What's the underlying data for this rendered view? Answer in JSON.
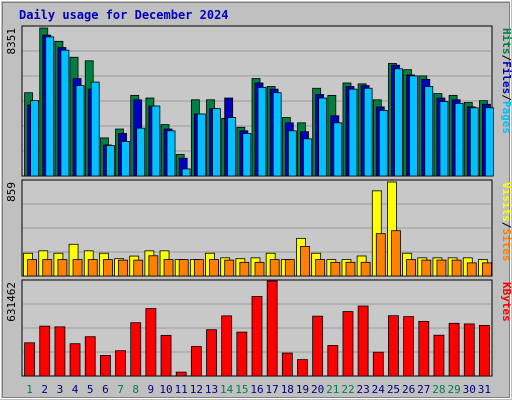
{
  "title": "Daily usage for December 2024",
  "colors": {
    "background": "#c0c0c0",
    "plot_background": "#c8c8c8",
    "gridline": "#9a9a9a",
    "title": "#0000c0",
    "hits": "#008040",
    "files": "#0000c0",
    "pages": "#00c0ff",
    "visits": "#ffff00",
    "sites": "#ff8000",
    "kbytes": "#ff0000",
    "weekend_label": "#00804a",
    "weekday_label": "#000080"
  },
  "chart_data": [
    {
      "type": "bar",
      "name": "hits-files-pages",
      "ymax_label": "8351",
      "legend": [
        {
          "name": "Pages",
          "color_key": "pages"
        },
        {
          "name": "/",
          "color_key": "separator"
        },
        {
          "name": "Files",
          "color_key": "files"
        },
        {
          "name": "/",
          "color_key": "separator"
        },
        {
          "name": "Hits",
          "color_key": "hits"
        }
      ],
      "ylim": [
        0,
        8351
      ],
      "categories": [
        "1",
        "2",
        "3",
        "4",
        "5",
        "6",
        "7",
        "8",
        "9",
        "10",
        "11",
        "12",
        "13",
        "14",
        "15",
        "16",
        "17",
        "18",
        "19",
        "20",
        "21",
        "22",
        "23",
        "24",
        "25",
        "26",
        "27",
        "28",
        "29",
        "30",
        "31"
      ],
      "series": [
        {
          "name": "Hits",
          "values": [
            4700,
            8350,
            7600,
            6700,
            6500,
            2150,
            2650,
            4550,
            4400,
            2900,
            1220,
            4300,
            4300,
            3250,
            2750,
            5500,
            5050,
            3300,
            3000,
            4950,
            4550,
            5250,
            5200,
            4300,
            6350,
            6000,
            5650,
            4650,
            4550,
            4150,
            4250
          ]
        },
        {
          "name": "Files",
          "values": [
            4000,
            7950,
            7250,
            5500,
            4900,
            1750,
            2400,
            4300,
            3950,
            2650,
            1000,
            3500,
            3800,
            4400,
            2550,
            5250,
            4900,
            3000,
            2500,
            4600,
            3400,
            5050,
            5100,
            3900,
            6250,
            5700,
            5450,
            4400,
            4300,
            3900,
            4050
          ]
        },
        {
          "name": "Pages",
          "values": [
            4250,
            7850,
            7100,
            5100,
            5300,
            1720,
            1950,
            2700,
            3950,
            2550,
            400,
            3500,
            3800,
            3300,
            2400,
            5000,
            4700,
            2550,
            2100,
            4400,
            3000,
            4900,
            4950,
            3700,
            6050,
            5650,
            5050,
            4200,
            4100,
            3850,
            3850
          ]
        }
      ]
    },
    {
      "type": "bar",
      "name": "visits-sites",
      "ymax_label": "859",
      "legend": [
        {
          "name": "Sites",
          "color_key": "sites"
        },
        {
          "name": "/",
          "color_key": "separator"
        },
        {
          "name": "Visits",
          "color_key": "visits"
        }
      ],
      "ylim": [
        0,
        859
      ],
      "series": [
        {
          "name": "Visits",
          "values": [
            208,
            230,
            208,
            290,
            230,
            208,
            158,
            182,
            230,
            230,
            150,
            150,
            208,
            166,
            158,
            166,
            208,
            150,
            344,
            208,
            150,
            150,
            183,
            778,
            859,
            208,
            166,
            166,
            166,
            166,
            150
          ]
        },
        {
          "name": "Sites",
          "values": [
            150,
            150,
            150,
            150,
            150,
            150,
            145,
            145,
            185,
            150,
            150,
            150,
            150,
            145,
            125,
            125,
            150,
            150,
            270,
            150,
            125,
            125,
            125,
            387,
            414,
            150,
            145,
            145,
            145,
            120,
            120
          ]
        }
      ]
    },
    {
      "type": "bar",
      "name": "kbytes",
      "ymax_label": "631462",
      "legend": [
        {
          "name": "KBytes",
          "color_key": "kbytes"
        }
      ],
      "ylim": [
        0,
        631462
      ],
      "series": [
        {
          "name": "KBytes",
          "values": [
            223000,
            335000,
            330000,
            217000,
            264000,
            138000,
            170000,
            358000,
            453000,
            273000,
            26000,
            198000,
            311000,
            404000,
            295000,
            534000,
            638000,
            154000,
            110000,
            402000,
            205000,
            433000,
            470000,
            160000,
            405000,
            399000,
            367000,
            274000,
            354000,
            350000,
            340000
          ]
        }
      ]
    }
  ]
}
